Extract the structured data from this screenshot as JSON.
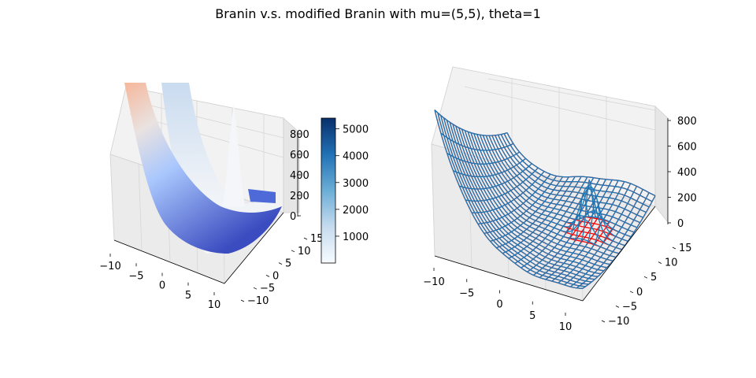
{
  "title": "Branin v.s. modified Branin with mu=(5,5), theta=1",
  "chart_data": [
    {
      "type": "surface",
      "x_ticks": [
        "−10",
        "−5",
        "0",
        "5",
        "10"
      ],
      "y_ticks": [
        "−10",
        "−5",
        "0",
        "5",
        "10",
        "15"
      ],
      "z_ticks": [
        "0",
        "200",
        "400",
        "600",
        "800"
      ],
      "xlim": [
        -10,
        10
      ],
      "ylim": [
        -10,
        15
      ],
      "zlim": [
        0,
        800
      ],
      "colormap_surface": "coolwarm",
      "colorbar": {
        "colormap": "Blues",
        "ticks": [
          "1000",
          "2000",
          "3000",
          "4000",
          "5000"
        ],
        "range": [
          0,
          5400
        ]
      }
    },
    {
      "type": "wireframe",
      "x_ticks": [
        "−10",
        "−5",
        "0",
        "5",
        "10"
      ],
      "y_ticks": [
        "−10",
        "−5",
        "0",
        "5",
        "10",
        "15"
      ],
      "z_ticks": [
        "0",
        "200",
        "400",
        "600",
        "800"
      ],
      "xlim": [
        -10,
        10
      ],
      "ylim": [
        -10,
        15
      ],
      "zlim": [
        0,
        800
      ],
      "series": [
        {
          "color": "#ff0000"
        },
        {
          "color": "#1f77b4"
        }
      ]
    }
  ]
}
